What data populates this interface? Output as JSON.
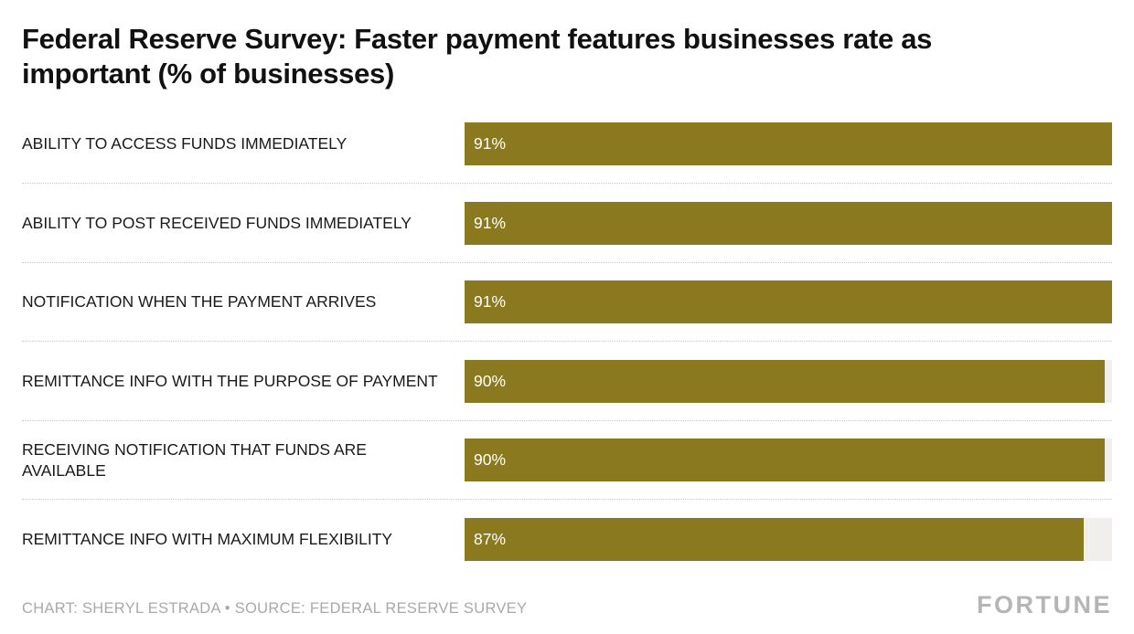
{
  "header": {
    "title": "Federal Reserve Survey: Faster payment features businesses rate as important (% of businesses)"
  },
  "chart_data": {
    "type": "bar",
    "orientation": "horizontal",
    "title": "Federal Reserve Survey: Faster payment features businesses rate as important (% of businesses)",
    "categories": [
      "ABILITY TO ACCESS FUNDS IMMEDIATELY",
      "ABILITY TO POST RECEIVED FUNDS IMMEDIATELY",
      "NOTIFICATION WHEN THE PAYMENT ARRIVES",
      "REMITTANCE INFO WITH THE PURPOSE OF PAYMENT",
      "RECEIVING NOTIFICATION THAT FUNDS ARE AVAILABLE",
      "REMITTANCE INFO WITH MAXIMUM FLEXIBILITY"
    ],
    "values": [
      91,
      91,
      91,
      90,
      90,
      87
    ],
    "value_labels": [
      "91%",
      "91%",
      "91%",
      "90%",
      "90%",
      "87%"
    ],
    "xlabel": "",
    "ylabel": "",
    "xmax": 91,
    "grid": false,
    "legend": false,
    "bar_color": "#8a791f",
    "track_color": "#f0efec"
  },
  "footer": {
    "credit": "CHART: SHERYL ESTRADA • SOURCE: FEDERAL RESERVE SURVEY",
    "brand": "FORTUNE"
  }
}
